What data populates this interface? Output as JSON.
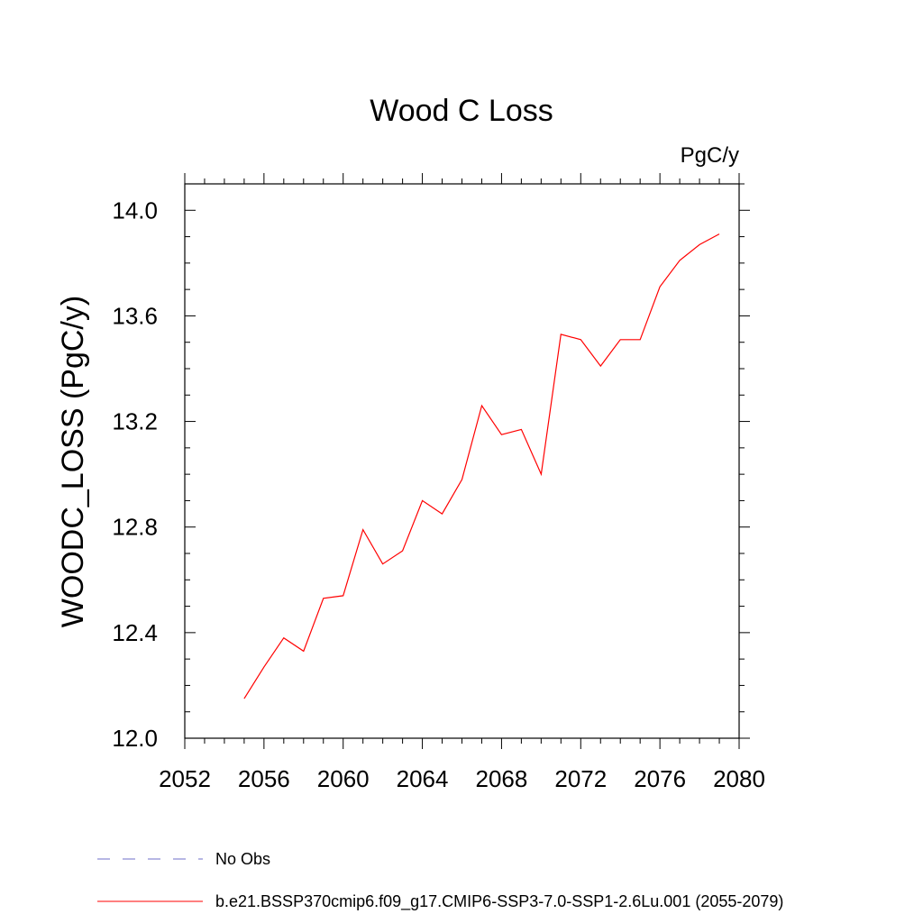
{
  "chart_data": {
    "type": "line",
    "title": "Wood C Loss",
    "units": "PgC/y",
    "xlabel": "",
    "ylabel": "WOODC_LOSS  (PgC/y)",
    "xlim": [
      2052,
      2080
    ],
    "ylim": [
      12.0,
      14.1
    ],
    "x_ticks": [
      "2052",
      "2056",
      "2060",
      "2064",
      "2068",
      "2072",
      "2076",
      "2080"
    ],
    "y_ticks": [
      "12.0",
      "12.4",
      "12.8",
      "13.2",
      "13.6",
      "14.0"
    ],
    "series": [
      {
        "name": "b.e21.BSSP370cmip6.f09_g17.CMIP6-SSP3-7.0-SSP1-2.6Lu.001 (2055-2079)",
        "color": "#ff0000",
        "x": [
          2055,
          2056,
          2057,
          2058,
          2059,
          2060,
          2061,
          2062,
          2063,
          2064,
          2065,
          2066,
          2067,
          2068,
          2069,
          2070,
          2071,
          2072,
          2073,
          2074,
          2075,
          2076,
          2077,
          2078,
          2079
        ],
        "values": [
          12.15,
          12.27,
          12.38,
          12.33,
          12.53,
          12.54,
          12.79,
          12.66,
          12.71,
          12.9,
          12.85,
          12.98,
          13.26,
          13.15,
          13.17,
          13.0,
          13.53,
          13.51,
          13.41,
          13.51,
          13.51,
          13.71,
          13.81,
          13.87,
          13.91
        ]
      }
    ],
    "legend": [
      {
        "label": "No Obs",
        "color": "#6f6fc8",
        "style": "dashed"
      },
      {
        "label": "b.e21.BSSP370cmip6.f09_g17.CMIP6-SSP3-7.0-SSP1-2.6Lu.001 (2055-2079)",
        "color": "#ff0000",
        "style": "solid"
      }
    ],
    "grid": false,
    "legend_position": "bottom"
  }
}
